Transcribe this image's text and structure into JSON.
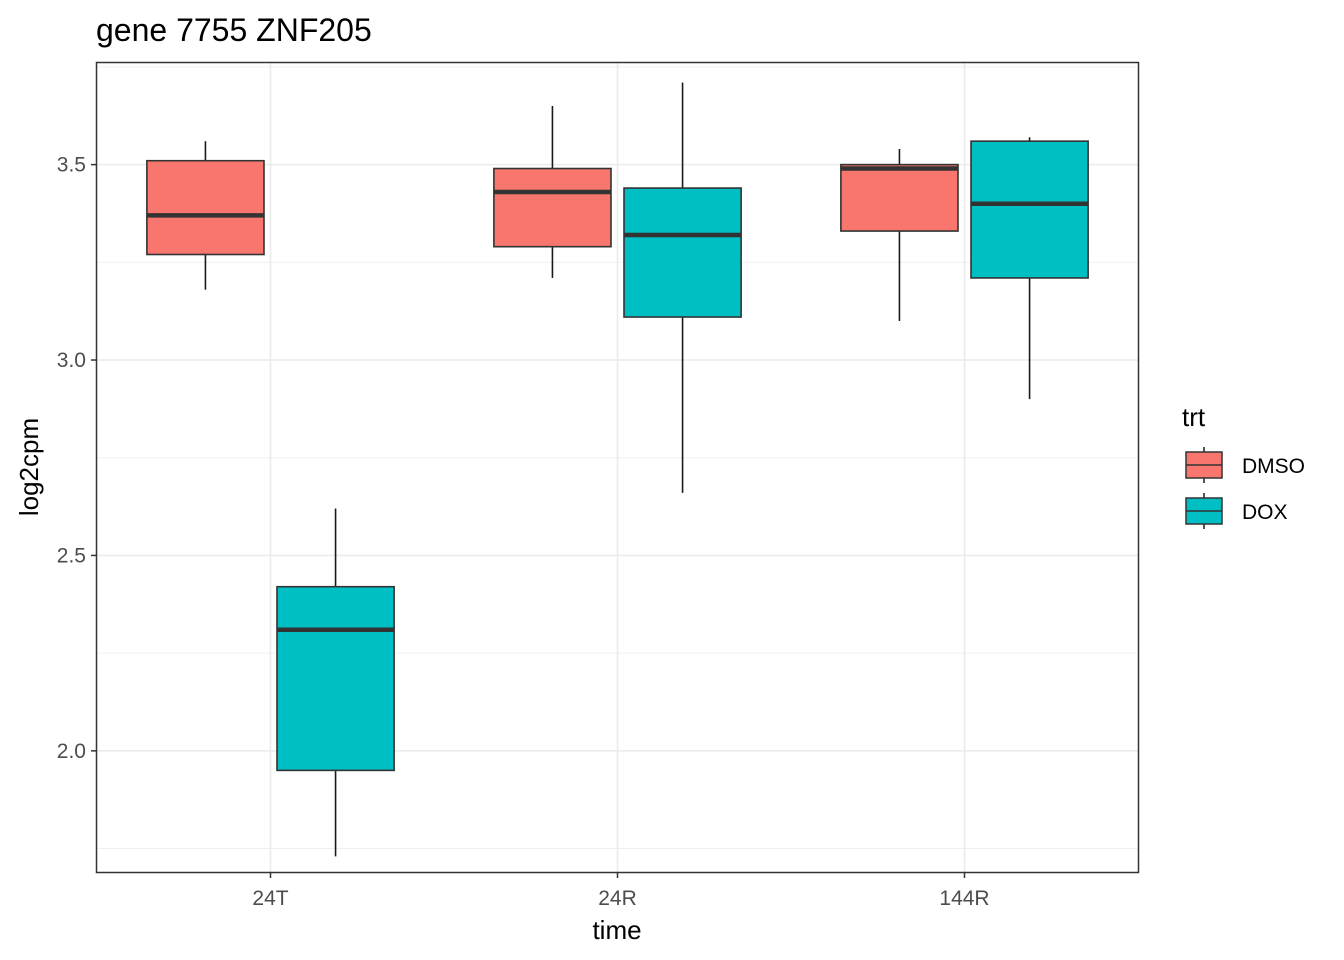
{
  "chart_data": {
    "type": "boxplot",
    "title": "gene 7755 ZNF205",
    "xlabel": "time",
    "ylabel": "log2cpm",
    "categories": [
      "24T",
      "24R",
      "144R"
    ],
    "ylim": [
      1.69,
      3.76
    ],
    "yticks": [
      2.0,
      2.5,
      3.0,
      3.5
    ],
    "ytick_labels": [
      "2.0",
      "2.5",
      "3.0",
      "3.5"
    ],
    "grid": true,
    "legend": {
      "title": "trt",
      "position": "right"
    },
    "series": [
      {
        "name": "DMSO",
        "color": "#F8766D",
        "boxes": [
          {
            "category": "24T",
            "min": 3.18,
            "q1": 3.27,
            "median": 3.37,
            "q3": 3.51,
            "max": 3.56
          },
          {
            "category": "24R",
            "min": 3.21,
            "q1": 3.29,
            "median": 3.43,
            "q3": 3.49,
            "max": 3.65
          },
          {
            "category": "144R",
            "min": 3.1,
            "q1": 3.33,
            "median": 3.49,
            "q3": 3.5,
            "max": 3.54
          }
        ]
      },
      {
        "name": "DOX",
        "color": "#00BFC4",
        "boxes": [
          {
            "category": "24T",
            "min": 1.73,
            "q1": 1.95,
            "median": 2.31,
            "q3": 2.42,
            "max": 2.62
          },
          {
            "category": "24R",
            "min": 2.66,
            "q1": 3.11,
            "median": 3.32,
            "q3": 3.44,
            "max": 3.71
          },
          {
            "category": "144R",
            "min": 2.9,
            "q1": 3.21,
            "median": 3.4,
            "q3": 3.56,
            "max": 3.57
          }
        ]
      }
    ]
  }
}
